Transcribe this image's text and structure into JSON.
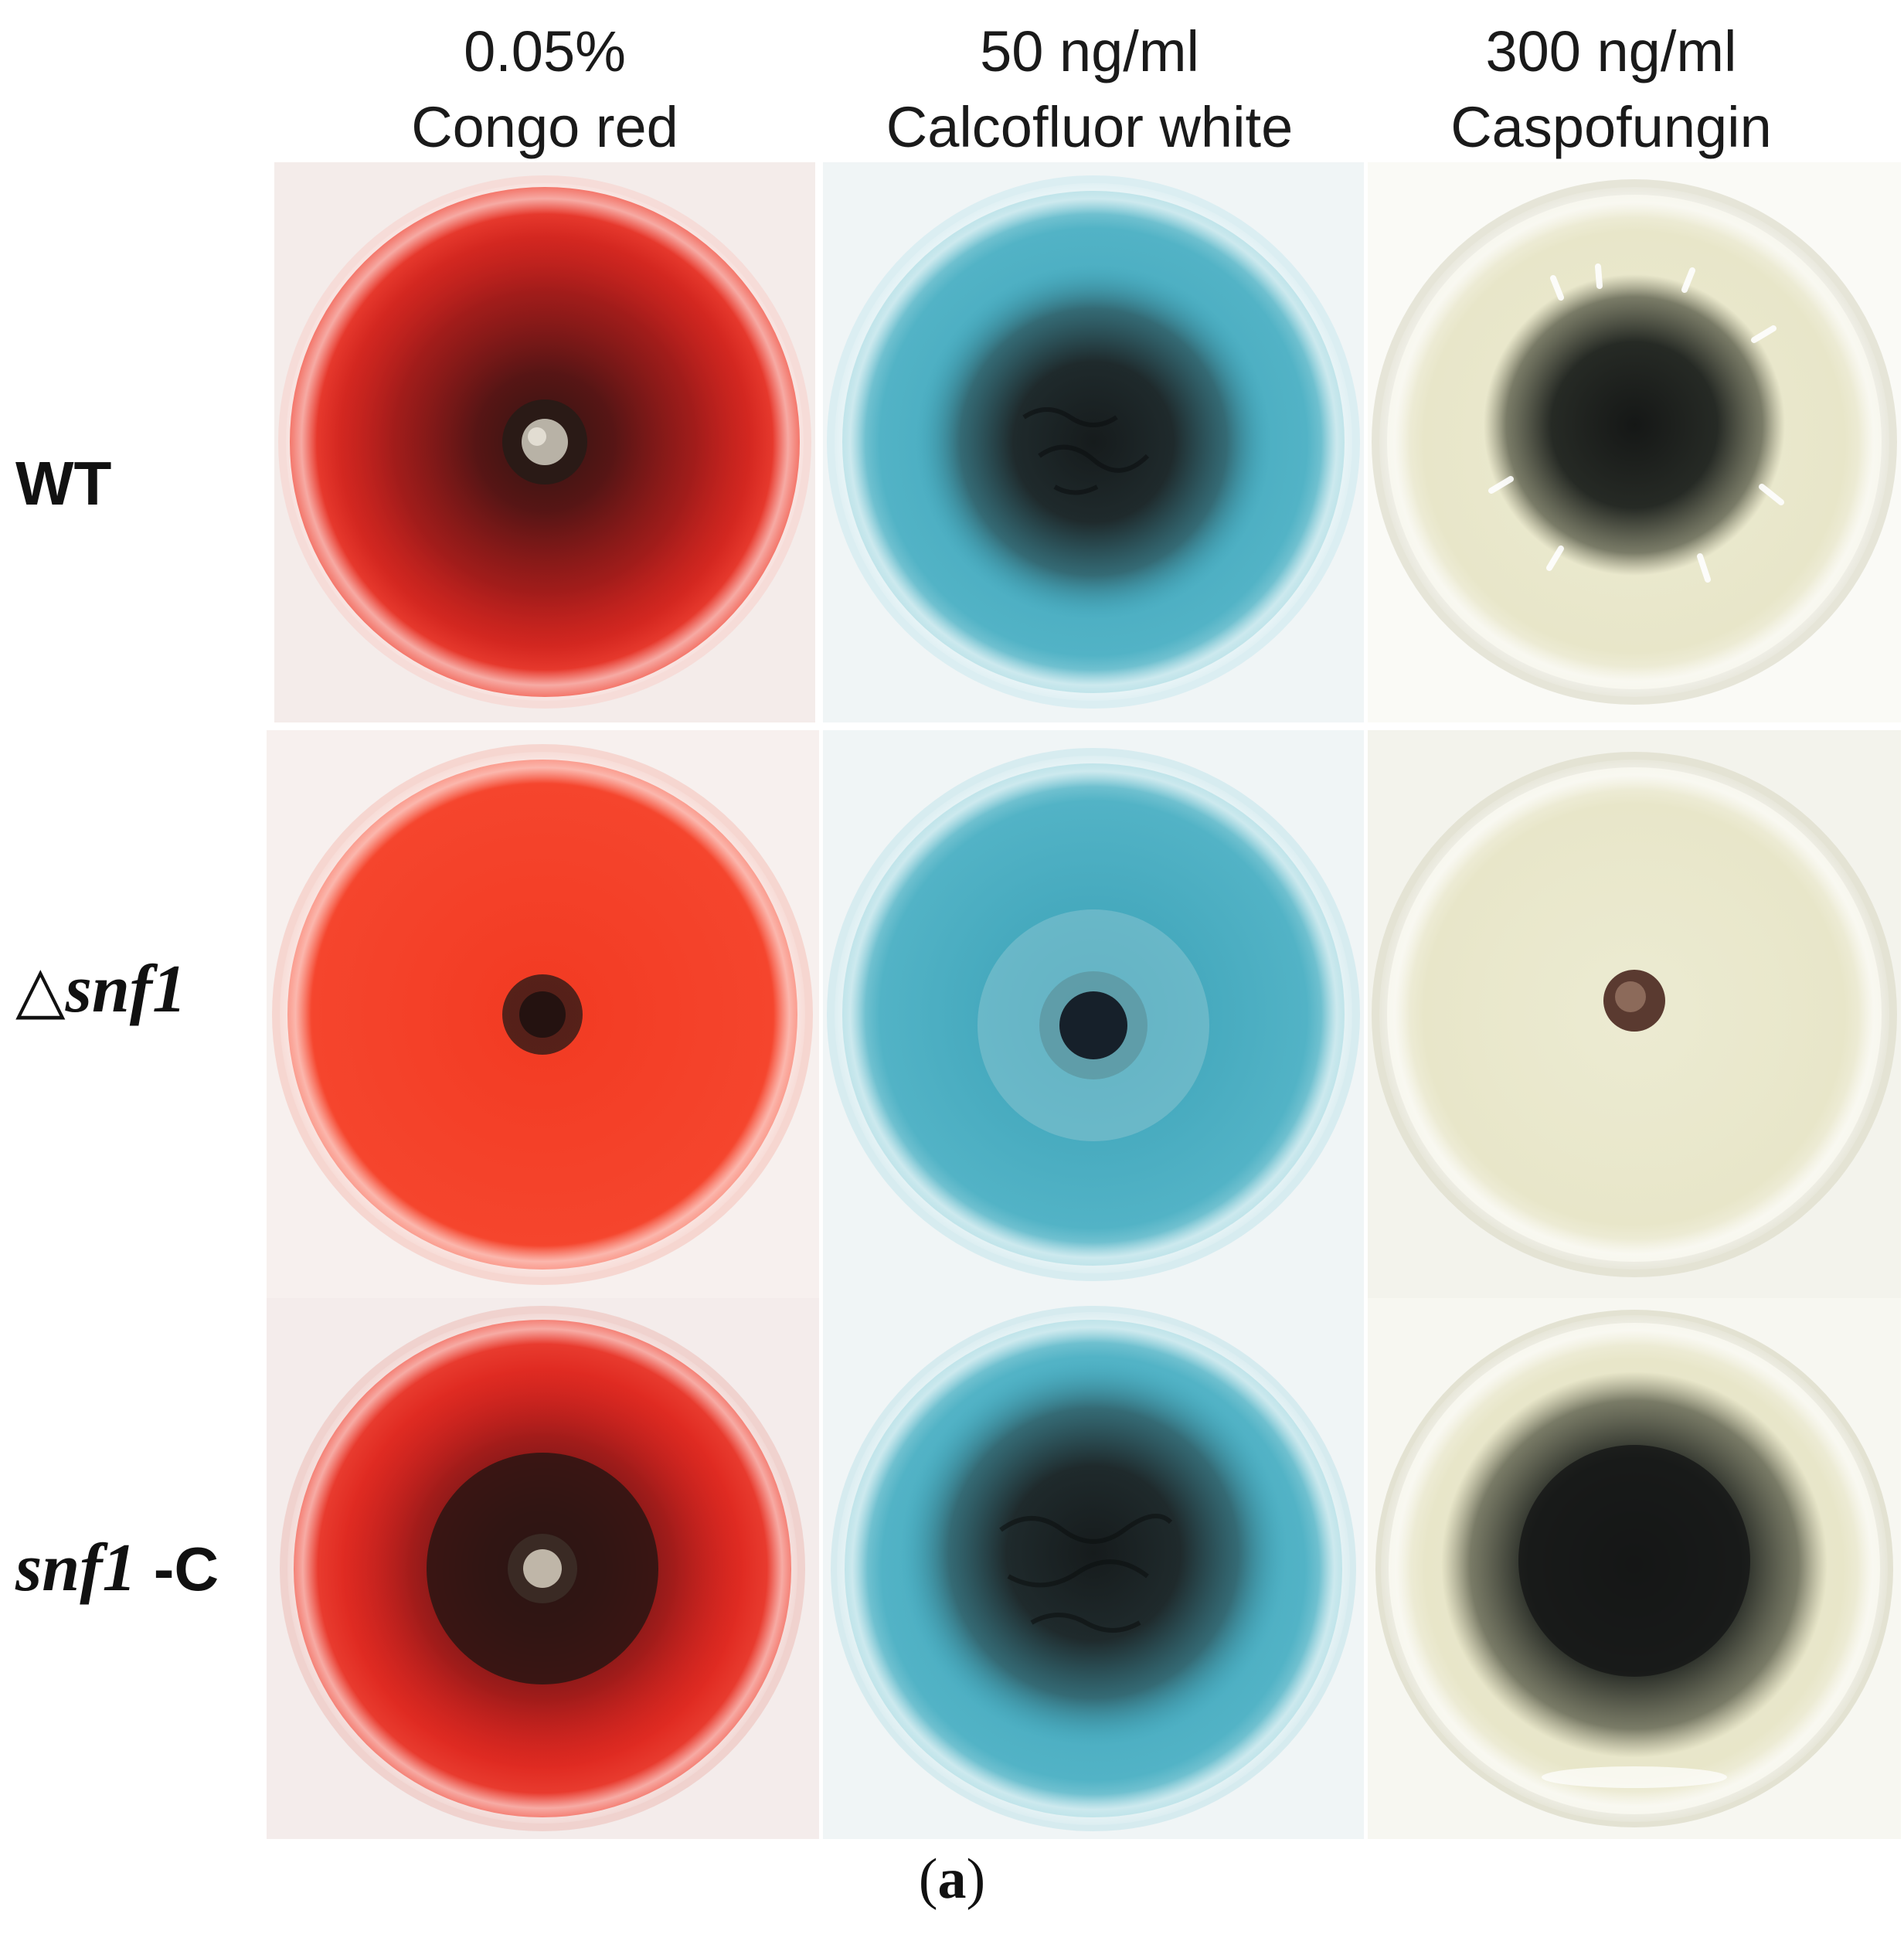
{
  "columns": [
    {
      "line1": "0.05%",
      "line2": "Congo red"
    },
    {
      "line1": "50 ng/ml",
      "line2": "Calcofluor white"
    },
    {
      "line1": "300 ng/ml",
      "line2": "Caspofungin"
    }
  ],
  "rows": [
    {
      "prefix": "WT",
      "italic": "",
      "suffix": ""
    },
    {
      "prefix": "△",
      "italic": "snf1",
      "suffix": ""
    },
    {
      "prefix": "",
      "italic": "snf1",
      "suffix": " -C"
    }
  ],
  "caption": {
    "open": "(",
    "letter": "a",
    "close": ")"
  },
  "colors": {
    "congo_red": "#e8331f",
    "calcofluor_blue": "#3fa7bd",
    "caspofungin_cream": "#ece9cf",
    "colony_dark": "#1e2220"
  }
}
